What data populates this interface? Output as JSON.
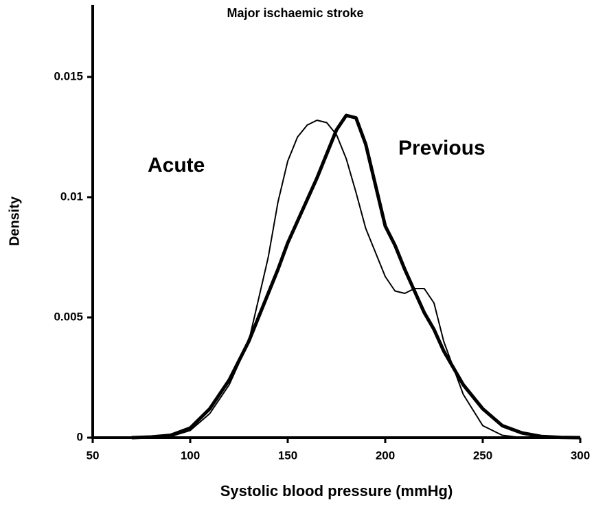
{
  "chart_data": {
    "type": "line",
    "title": "Major ischaemic stroke",
    "x_label": "Systolic blood pressure (mmHg)",
    "y_label": "Density",
    "x": [
      70,
      80,
      90,
      100,
      110,
      120,
      130,
      140,
      145,
      150,
      155,
      160,
      165,
      170,
      175,
      180,
      185,
      190,
      200,
      205,
      210,
      215,
      220,
      225,
      230,
      240,
      250,
      260,
      270,
      280,
      290,
      300
    ],
    "series": [
      {
        "name": "Acute",
        "color": "#000000",
        "width": 2,
        "values": [
          0,
          0,
          5e-05,
          0.0003,
          0.001,
          0.0022,
          0.004,
          0.0075,
          0.0098,
          0.0115,
          0.0125,
          0.013,
          0.0132,
          0.0131,
          0.0126,
          0.0116,
          0.0102,
          0.0087,
          0.0067,
          0.0061,
          0.006,
          0.0062,
          0.0062,
          0.0056,
          0.004,
          0.0018,
          0.0005,
          0.0001,
          0,
          0,
          0,
          0
        ]
      },
      {
        "name": "Previous",
        "color": "#000000",
        "width": 5,
        "values": [
          0,
          3e-05,
          0.0001,
          0.0004,
          0.0012,
          0.0024,
          0.004,
          0.006,
          0.007,
          0.0081,
          0.009,
          0.0099,
          0.0108,
          0.0118,
          0.0128,
          0.0134,
          0.0133,
          0.0122,
          0.0088,
          0.008,
          0.007,
          0.0061,
          0.0052,
          0.0045,
          0.0036,
          0.0022,
          0.0012,
          0.0005,
          0.0002,
          5e-05,
          1e-05,
          0
        ]
      }
    ],
    "xlim": [
      50,
      300
    ],
    "xticks": [
      50,
      100,
      150,
      200,
      250,
      300
    ],
    "ylim": [
      0,
      0.018
    ],
    "yticks": [
      0,
      0.005,
      0.01,
      0.015
    ]
  }
}
